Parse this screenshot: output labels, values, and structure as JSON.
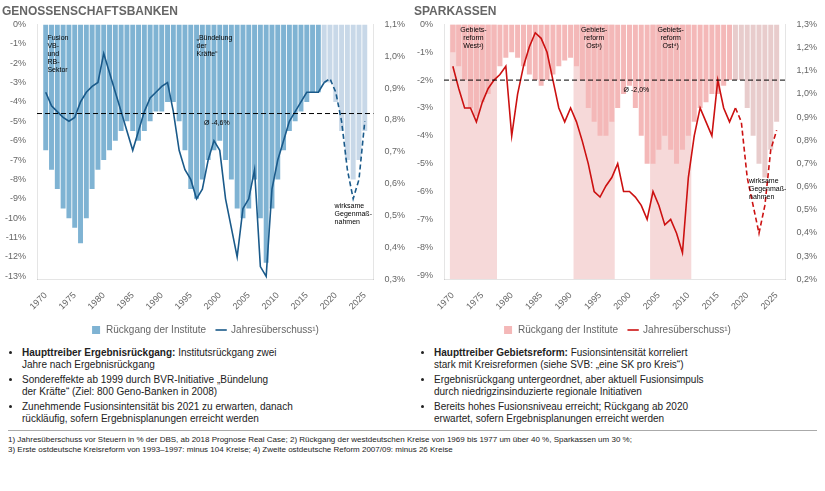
{
  "chart_data": [
    {
      "type": "bar",
      "title": "GENOSSENSCHAFTSBANKEN",
      "x": [
        1970,
        1971,
        1972,
        1973,
        1974,
        1975,
        1976,
        1977,
        1978,
        1979,
        1980,
        1981,
        1982,
        1983,
        1984,
        1985,
        1986,
        1987,
        1988,
        1989,
        1990,
        1991,
        1992,
        1993,
        1994,
        1995,
        1996,
        1997,
        1998,
        1999,
        2000,
        2001,
        2002,
        2003,
        2004,
        2005,
        2006,
        2007,
        2008,
        2009,
        2010,
        2011,
        2012,
        2013,
        2014,
        2015,
        2016,
        2017,
        2018,
        2019,
        2020,
        2021,
        2022,
        2023,
        2024,
        2025
      ],
      "xlim": [
        1968.5,
        2026.5
      ],
      "xticks": [
        1970,
        1975,
        1980,
        1985,
        1990,
        1995,
        2000,
        2005,
        2010,
        2015,
        2020,
        2025
      ],
      "ylim": [
        -13.15,
        0
      ],
      "yticks": [
        {
          "value": 0,
          "label": "0%"
        },
        {
          "value": -1,
          "label": "-1%"
        },
        {
          "value": -2,
          "label": "-2%"
        },
        {
          "value": -3,
          "label": "-3%"
        },
        {
          "value": -4,
          "label": "-4%"
        },
        {
          "value": -5,
          "label": "-5%"
        },
        {
          "value": -6,
          "label": "-6%"
        },
        {
          "value": -7,
          "label": "-7%"
        },
        {
          "value": -8,
          "label": "-8%"
        },
        {
          "value": -9,
          "label": "-9%"
        },
        {
          "value": -10,
          "label": "-10%"
        },
        {
          "value": -11,
          "label": "-11%"
        },
        {
          "value": -12,
          "label": "-12%"
        },
        {
          "value": -13,
          "label": "-13%"
        }
      ],
      "y2lim": [
        0.3,
        1.1
      ],
      "y2ticks": [
        {
          "value": 0.3,
          "label": "0,3%"
        },
        {
          "value": 0.4,
          "label": "0,4%"
        },
        {
          "value": 0.5,
          "label": "0,5%"
        },
        {
          "value": 0.6,
          "label": "0,6%"
        },
        {
          "value": 0.7,
          "label": "0,7%"
        },
        {
          "value": 0.8,
          "label": "0,8%"
        },
        {
          "value": 0.9,
          "label": "0,9%"
        },
        {
          "value": 1.0,
          "label": "1,0%"
        },
        {
          "value": 1.1,
          "label": "1,1%"
        }
      ],
      "grid": false,
      "legend": "bottom",
      "series": [
        {
          "name": "Rückgang der Institute",
          "type": "bar",
          "color": "#7fb3d3",
          "forecast_color": "#c8d8e8",
          "forecast_from": 2018,
          "values": [
            -6.5,
            -7.5,
            -8.5,
            -9.5,
            -10.0,
            -10.5,
            -11.3,
            -10.0,
            -8.5,
            -7.5,
            -7.0,
            -6.5,
            -6.0,
            -5.5,
            -5.0,
            -5.5,
            -6.0,
            -5.5,
            -5.0,
            -4.5,
            -4.5,
            -4.0,
            -4.0,
            -5.0,
            -6.5,
            -8.5,
            -9.0,
            -8.0,
            -7.0,
            -6.5,
            -6.0,
            -7.0,
            -8.0,
            -9.5,
            -10.0,
            -9.5,
            -8.0,
            -10.0,
            -12.3,
            -9.5,
            -8.0,
            -6.5,
            -5.5,
            -5.0,
            -4.5,
            -4.0,
            -3.5,
            -3.5,
            -3.0,
            -3.0,
            -4.0,
            -5.5,
            -7.0,
            -8.0,
            -7.0,
            -5.5
          ]
        },
        {
          "name": "Jahresüberschuss¹)",
          "type": "line",
          "color": "#1a5a8a",
          "forecast_from": 2018,
          "values": [
            -3.5,
            -4.2,
            -4.5,
            -4.8,
            -5.0,
            -4.8,
            -4.0,
            -3.5,
            -3.2,
            -3.0,
            -1.5,
            -2.5,
            -3.5,
            -4.5,
            -5.5,
            -6.5,
            -5.5,
            -4.5,
            -3.8,
            -3.5,
            -3.2,
            -3.0,
            -4.5,
            -6.5,
            -7.5,
            -8.0,
            -9.0,
            -8.5,
            -7.0,
            -6.0,
            -6.5,
            -9.0,
            -10.5,
            -12.0,
            -9.5,
            -9.0,
            -7.5,
            -12.5,
            -13.0,
            -8.5,
            -7.0,
            -6.0,
            -5.0,
            -4.5,
            -4.0,
            -3.5,
            -3.5,
            -3.5,
            -3.0,
            -2.8,
            -3.5,
            -5.0,
            -7.5,
            -9.0,
            -8.0,
            -5.0
          ]
        }
      ],
      "average": -4.6,
      "annotations": [
        {
          "x": 1970.3,
          "y": -0.5,
          "text": "Fusion\nVB-\nund\nRB-\nSektor"
        },
        {
          "x": 1996.0,
          "y": -0.5,
          "text": "„Bündelung\nder\nKräfte“"
        },
        {
          "x": 1999.5,
          "y": -4.9,
          "text": "Ø -4,6%",
          "align": "center"
        },
        {
          "x": 2019.8,
          "y": -9.2,
          "text": "wirksame\nGegenmaß-\nnahmen"
        }
      ],
      "bullets": [
        {
          "bold": "Haupttreiber Ergebnisrückgang:",
          "text": " Institutsrückgang zwei\nJahre nach Ergebnisrückgang"
        },
        {
          "text": "Sondereffekte ab 1999 durch BVR-Initiative „Bündelung\nder Kräfte“ (Ziel: 800 Geno-Banken in 2008)"
        },
        {
          "text": "Zunehmende Fusionsintensität bis 2021 zu erwarten, danach\nrückläufig, sofern Ergebnisplanungen erreicht werden"
        }
      ]
    },
    {
      "type": "bar",
      "title": "SPARKASSEN",
      "x": [
        1970,
        1971,
        1972,
        1973,
        1974,
        1975,
        1976,
        1977,
        1978,
        1979,
        1980,
        1981,
        1982,
        1983,
        1984,
        1985,
        1986,
        1987,
        1988,
        1989,
        1990,
        1991,
        1992,
        1993,
        1994,
        1995,
        1996,
        1997,
        1998,
        1999,
        2000,
        2001,
        2002,
        2003,
        2004,
        2005,
        2006,
        2007,
        2008,
        2009,
        2010,
        2011,
        2012,
        2013,
        2014,
        2015,
        2016,
        2017,
        2018,
        2019,
        2020,
        2021,
        2022,
        2023,
        2024,
        2025
      ],
      "xlim": [
        1968.5,
        2026.5
      ],
      "xticks": [
        1970,
        1975,
        1980,
        1985,
        1990,
        1995,
        2000,
        2005,
        2010,
        2015,
        2020,
        2025
      ],
      "ylim": [
        -9.15,
        0
      ],
      "yticks": [
        {
          "value": 0,
          "label": "0%"
        },
        {
          "value": -1,
          "label": "-1%"
        },
        {
          "value": -2,
          "label": "-2%"
        },
        {
          "value": -3,
          "label": "-3%"
        },
        {
          "value": -4,
          "label": "-4%"
        },
        {
          "value": -5,
          "label": "-5%"
        },
        {
          "value": -6,
          "label": "-6%"
        },
        {
          "value": -7,
          "label": "-7%"
        },
        {
          "value": -8,
          "label": "-8%"
        },
        {
          "value": -9,
          "label": "-9%"
        }
      ],
      "y2lim": [
        0.2,
        1.3
      ],
      "y2ticks": [
        {
          "value": 0.2,
          "label": "0,2%"
        },
        {
          "value": 0.3,
          "label": "0,3%"
        },
        {
          "value": 0.4,
          "label": "0,4%"
        },
        {
          "value": 0.5,
          "label": "0,5%"
        },
        {
          "value": 0.6,
          "label": "0,6%"
        },
        {
          "value": 0.7,
          "label": "0,7%"
        },
        {
          "value": 0.8,
          "label": "0,8%"
        },
        {
          "value": 0.9,
          "label": "0,9%"
        },
        {
          "value": 1.0,
          "label": "1,0%"
        },
        {
          "value": 1.1,
          "label": "1,1%"
        },
        {
          "value": 1.2,
          "label": "1,2%"
        },
        {
          "value": 1.3,
          "label": "1,3%"
        }
      ],
      "grid": false,
      "legend": "bottom",
      "series": [
        {
          "name": "Rückgang der Institute",
          "type": "bar",
          "color": "#f4b8b8",
          "forecast_color": "#e8cccc",
          "forecast_from": 2018,
          "values": [
            -1.0,
            -1.5,
            -2.0,
            -3.0,
            -3.3,
            -2.8,
            -2.5,
            -2.0,
            -1.5,
            -1.2,
            -1.0,
            -1.2,
            -1.5,
            -1.8,
            -2.0,
            -2.2,
            -2.0,
            -1.8,
            -1.5,
            -1.3,
            -1.2,
            -1.5,
            -2.0,
            -3.0,
            -3.5,
            -4.0,
            -4.0,
            -3.5,
            -3.0,
            -2.5,
            -2.2,
            -3.0,
            -4.0,
            -5.0,
            -5.0,
            -4.5,
            -4.0,
            -4.5,
            -5.0,
            -4.5,
            -4.0,
            -3.5,
            -3.0,
            -2.8,
            -2.5,
            -2.5,
            -2.2,
            -2.0,
            -2.0,
            -2.0,
            -3.0,
            -4.0,
            -5.0,
            -5.5,
            -4.5,
            -3.5
          ]
        },
        {
          "name": "Jahresüberschuss¹)",
          "type": "line",
          "color": "#cc1111",
          "forecast_from": 2018,
          "values": [
            -1.5,
            -2.3,
            -3.0,
            -3.0,
            -3.5,
            -2.8,
            -2.3,
            -2.0,
            -1.8,
            -1.5,
            -4.0,
            -2.5,
            -1.5,
            -0.8,
            -0.3,
            -0.5,
            -1.0,
            -2.0,
            -3.0,
            -3.5,
            -3.0,
            -3.5,
            -4.2,
            -5.0,
            -6.0,
            -6.2,
            -5.8,
            -5.5,
            -5.0,
            -6.0,
            -6.0,
            -6.2,
            -6.5,
            -7.0,
            -6.0,
            -6.5,
            -7.2,
            -7.0,
            -7.5,
            -8.2,
            -5.5,
            -4.0,
            -3.0,
            -3.5,
            -4.0,
            -2.0,
            -3.0,
            -3.5,
            -3.0,
            -3.5,
            -5.5,
            -6.5,
            -7.5,
            -6.5,
            -4.5,
            -3.8
          ]
        }
      ],
      "average": -2.0,
      "spans": [
        {
          "x0": 1969.5,
          "x1": 1977.5,
          "label": "Gebiets-\nreform\nWest²)",
          "color": "#e08080"
        },
        {
          "x0": 1990.5,
          "x1": 1997.5,
          "label": "Gebiets-\nreform\nOst³)",
          "color": "#e08080"
        },
        {
          "x0": 2003.5,
          "x1": 2010.5,
          "label": "Gebiets-\nreform\nOst⁴)",
          "color": "#e08080"
        }
      ],
      "annotations": [
        {
          "x": 1999.0,
          "y": -2.25,
          "text": "Ø -2,0%"
        },
        {
          "x": 2020.3,
          "y": -5.5,
          "text": "wirksame\nGegenmaß-\nnahmen"
        }
      ],
      "bullets": [
        {
          "bold": "Haupttreiber Gebietsreform:",
          "text": " Fusionsintensität korreliert\nstark mit Kreisreformen (siehe SVB: „eine SK pro Kreis“)"
        },
        {
          "text": "Ergebnisrückgang untergeordnet, aber aktuell Fusionsimpuls\ndurch niedrigzinsinduzierte regionale Initiativen"
        },
        {
          "text": "Bereits hohes Fusionsniveau erreicht; Rückgang ab 2020\nerwartet, sofern Ergebnisplanungen erreicht werden"
        }
      ]
    }
  ],
  "footnote": [
    "1) Jahresüberschuss vor Steuern in % der DBS, ab 2018 Prognose Real Case; 2) Rückgang der westdeutschen Kreise von 1969 bis 1977 um über 40 %, Sparkassen um 30 %;",
    "3) Erste ostdeutsche Kreisreform von 1993–1997: minus 104 Kreise; 4) Zweite ostdeutsche Reform 2007/09: minus 26 Kreise"
  ]
}
